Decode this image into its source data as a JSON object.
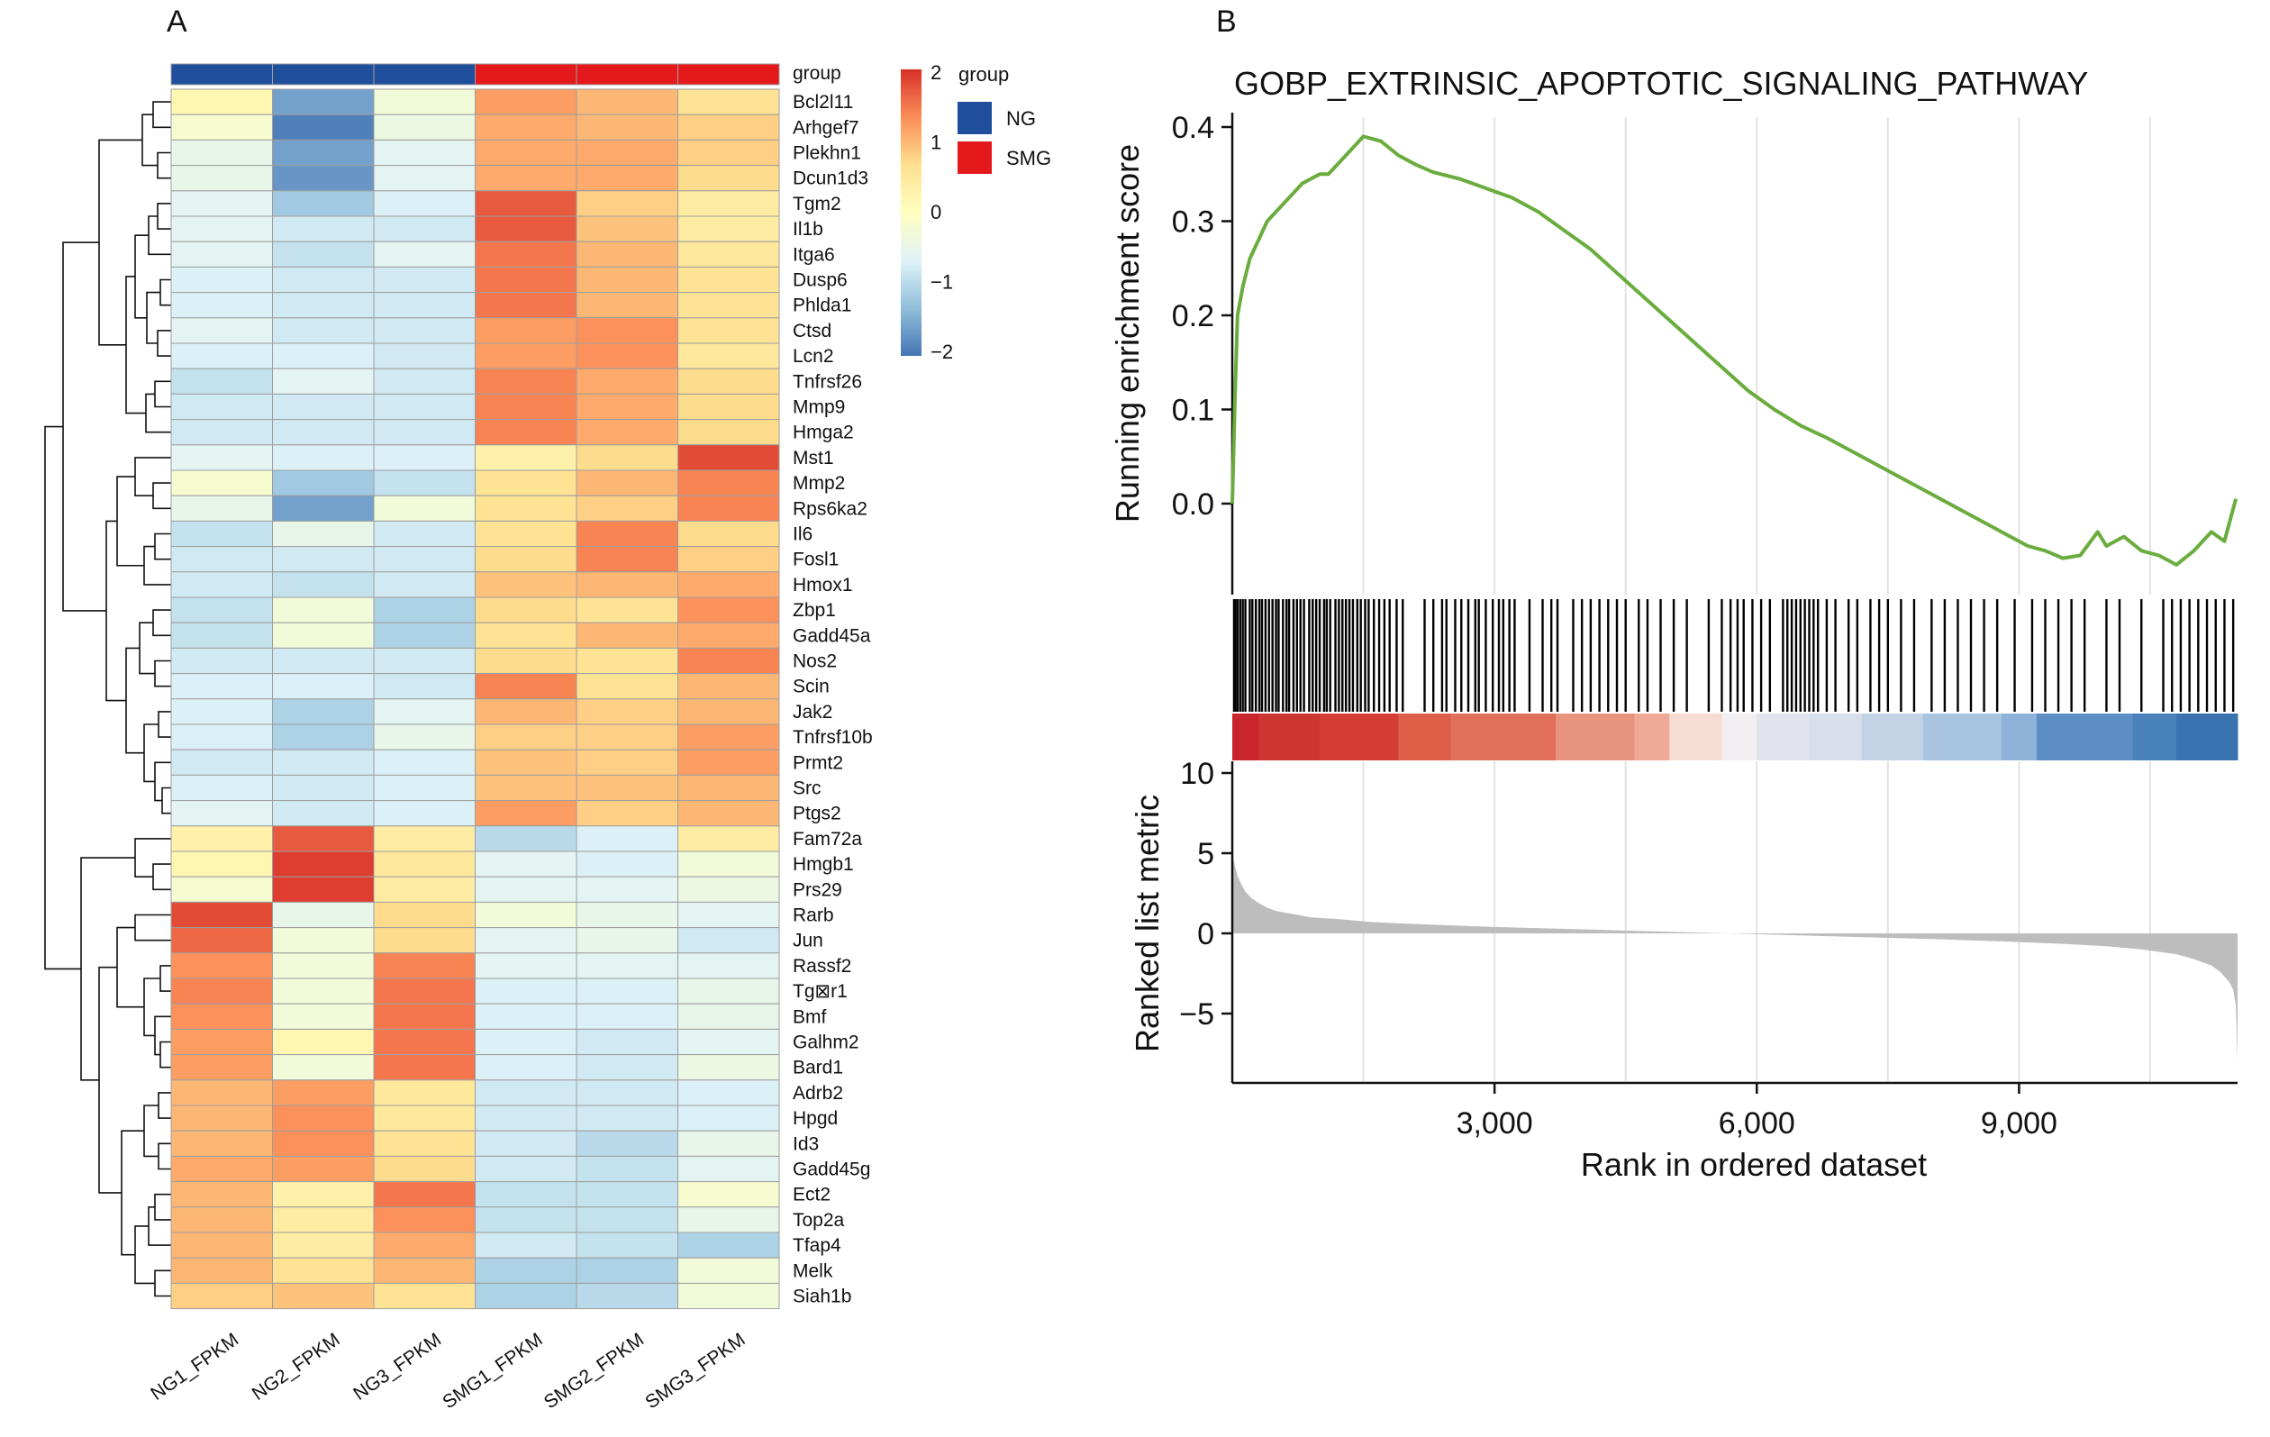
{
  "panels": {
    "a_label": "A",
    "b_label": "B"
  },
  "heatmap": {
    "annotation_label": "group",
    "group_colors": {
      "NG": "#1f4e9c",
      "SMG": "#e3191c"
    },
    "sample_groups": [
      "NG",
      "NG",
      "NG",
      "SMG",
      "SMG",
      "SMG"
    ],
    "samples": [
      "NG1_FPKM",
      "NG2_FPKM",
      "NG3_FPKM",
      "SMG1_FPKM",
      "SMG2_FPKM",
      "SMG3_FPKM"
    ],
    "genes": [
      "Bcl2l11",
      "Arhgef7",
      "Plekhn1",
      "Dcun1d3",
      "Tgm2",
      "Il1b",
      "Itga6",
      "Dusp6",
      "Phlda1",
      "Ctsd",
      "Lcn2",
      "Tnfrsf26",
      "Mmp9",
      "Hmga2",
      "Mst1",
      "Mmp2",
      "Rps6ka2",
      "Il6",
      "Fosl1",
      "Hmox1",
      "Zbp1",
      "Gadd45a",
      "Nos2",
      "Scin",
      "Jak2",
      "Tnfrsf10b",
      "Prmt2",
      "Src",
      "Ptgs2",
      "Fam72a",
      "Hmgb1",
      "Prs29",
      "Rarb",
      "Jun",
      "Rassf2",
      "Tg⊠r1",
      "Bmf",
      "Galhm2",
      "Bard1",
      "Adrb2",
      "Hpgd",
      "Id3",
      "Gadd45g",
      "Ect2",
      "Top2a",
      "Tfap4",
      "Melk",
      "Siah1b"
    ],
    "values": [
      [
        0.2,
        -1.6,
        -0.3,
        1.2,
        1.0,
        0.6
      ],
      [
        -0.2,
        -1.9,
        -0.4,
        1.1,
        1.0,
        0.8
      ],
      [
        -0.5,
        -1.6,
        -0.6,
        1.1,
        1.1,
        0.8
      ],
      [
        -0.5,
        -1.7,
        -0.6,
        1.1,
        1.1,
        0.7
      ],
      [
        -0.6,
        -1.2,
        -0.7,
        1.7,
        0.8,
        0.4
      ],
      [
        -0.6,
        -0.8,
        -0.8,
        1.7,
        0.9,
        0.4
      ],
      [
        -0.6,
        -0.9,
        -0.6,
        1.5,
        1.0,
        0.5
      ],
      [
        -0.7,
        -0.8,
        -0.8,
        1.5,
        1.0,
        0.6
      ],
      [
        -0.7,
        -0.8,
        -0.8,
        1.5,
        1.0,
        0.6
      ],
      [
        -0.6,
        -0.8,
        -0.8,
        1.2,
        1.3,
        0.6
      ],
      [
        -0.7,
        -0.7,
        -0.8,
        1.2,
        1.3,
        0.5
      ],
      [
        -0.9,
        -0.6,
        -0.8,
        1.4,
        1.1,
        0.7
      ],
      [
        -0.8,
        -0.8,
        -0.8,
        1.4,
        1.1,
        0.7
      ],
      [
        -0.8,
        -0.8,
        -0.8,
        1.4,
        1.1,
        0.7
      ],
      [
        -0.6,
        -0.7,
        -0.7,
        0.3,
        0.7,
        1.8
      ],
      [
        -0.2,
        -1.2,
        -0.9,
        0.6,
        1.0,
        1.4
      ],
      [
        -0.5,
        -1.6,
        -0.3,
        0.6,
        0.8,
        1.4
      ],
      [
        -0.9,
        -0.5,
        -0.8,
        0.6,
        1.4,
        0.7
      ],
      [
        -0.8,
        -0.8,
        -0.8,
        0.7,
        1.4,
        0.8
      ],
      [
        -0.8,
        -0.9,
        -0.8,
        0.9,
        1.0,
        1.1
      ],
      [
        -0.9,
        -0.3,
        -1.1,
        0.7,
        0.6,
        1.3
      ],
      [
        -0.9,
        -0.3,
        -1.1,
        0.6,
        1.0,
        1.1
      ],
      [
        -0.8,
        -0.8,
        -0.8,
        0.7,
        0.6,
        1.4
      ],
      [
        -0.7,
        -0.7,
        -0.8,
        1.4,
        0.6,
        1.0
      ],
      [
        -0.7,
        -1.1,
        -0.6,
        1.0,
        0.8,
        1.0
      ],
      [
        -0.7,
        -1.1,
        -0.5,
        0.8,
        0.8,
        1.2
      ],
      [
        -0.8,
        -0.8,
        -0.7,
        0.9,
        0.8,
        1.2
      ],
      [
        -0.7,
        -0.8,
        -0.7,
        0.9,
        0.9,
        1.0
      ],
      [
        -0.6,
        -0.8,
        -0.7,
        1.2,
        0.8,
        1.0
      ],
      [
        0.3,
        1.7,
        0.4,
        -1.0,
        -0.7,
        0.4
      ],
      [
        0.2,
        1.9,
        0.5,
        -0.6,
        -0.7,
        -0.3
      ],
      [
        -0.2,
        1.9,
        0.4,
        -0.6,
        -0.6,
        -0.4
      ],
      [
        1.8,
        -0.5,
        0.7,
        -0.3,
        -0.5,
        -0.6
      ],
      [
        1.6,
        -0.3,
        0.7,
        -0.6,
        -0.5,
        -0.8
      ],
      [
        1.3,
        -0.3,
        1.4,
        -0.6,
        -0.6,
        -0.6
      ],
      [
        1.4,
        -0.3,
        1.5,
        -0.7,
        -0.7,
        -0.5
      ],
      [
        1.3,
        -0.3,
        1.5,
        -0.7,
        -0.7,
        -0.5
      ],
      [
        1.2,
        0.2,
        1.5,
        -0.7,
        -0.8,
        -0.6
      ],
      [
        1.2,
        -0.3,
        1.5,
        -0.7,
        -0.8,
        -0.4
      ],
      [
        1.0,
        1.2,
        0.5,
        -0.8,
        -0.8,
        -0.7
      ],
      [
        1.0,
        1.3,
        0.5,
        -0.8,
        -0.8,
        -0.7
      ],
      [
        1.0,
        1.3,
        0.6,
        -0.8,
        -1.0,
        -0.5
      ],
      [
        1.1,
        1.2,
        0.7,
        -0.8,
        -0.9,
        -0.6
      ],
      [
        1.0,
        0.3,
        1.5,
        -0.9,
        -0.9,
        -0.2
      ],
      [
        1.0,
        0.4,
        1.3,
        -0.9,
        -0.9,
        -0.5
      ],
      [
        1.0,
        0.4,
        1.1,
        -0.8,
        -0.9,
        -1.1
      ],
      [
        1.0,
        0.6,
        1.0,
        -1.1,
        -1.1,
        -0.3
      ],
      [
        0.8,
        0.9,
        0.6,
        -1.1,
        -1.0,
        -0.3
      ]
    ],
    "color_scale": {
      "min": -2,
      "max": 2,
      "ticks": [
        "2",
        "1",
        "0",
        "−1",
        "−2"
      ],
      "stops": [
        "#4575b4",
        "#91bfdb",
        "#e0f3f8",
        "#ffffbf",
        "#fee090",
        "#fc8d59",
        "#d73027"
      ]
    },
    "legend": {
      "title": "group",
      "entries": [
        "NG",
        "SMG"
      ]
    }
  },
  "chart_data": {
    "type": "line",
    "title": "GOBP_EXTRINSIC_APOPTOTIC_SIGNALING_PATHWAY",
    "line_color": "#6bac3f",
    "es_ylabel": "Running enrichment score",
    "es_yticks": [
      "0.4",
      "0.3",
      "0.2",
      "0.1",
      "0.0"
    ],
    "es_ylim": [
      -0.07,
      0.41
    ],
    "rank_ylabel": "Ranked list metric",
    "rank_yticks": [
      "10",
      "5",
      "0",
      "−5"
    ],
    "rank_ylim": [
      -8.5,
      10.5
    ],
    "xlabel": "Rank in ordered dataset",
    "xtick_values": [
      3000,
      6000,
      9000
    ],
    "xtick_labels": [
      "3,000",
      "6,000",
      "9,000"
    ],
    "xlim": [
      0,
      11500
    ],
    "vertical_gridlines": [
      1500,
      3000,
      4500,
      6000,
      7500,
      9000,
      10500
    ],
    "running_es": {
      "x": [
        0,
        30,
        60,
        120,
        200,
        300,
        400,
        500,
        600,
        700,
        800,
        900,
        1000,
        1100,
        1200,
        1300,
        1400,
        1500,
        1700,
        1900,
        2100,
        2300,
        2600,
        2900,
        3200,
        3500,
        3800,
        4100,
        4400,
        4700,
        5000,
        5300,
        5600,
        5900,
        6200,
        6500,
        6800,
        7100,
        7400,
        7700,
        8000,
        8300,
        8600,
        8900,
        9100,
        9300,
        9500,
        9700,
        9900,
        10000,
        10200,
        10400,
        10600,
        10800,
        11000,
        11200,
        11350,
        11480
      ],
      "y": [
        0.0,
        0.11,
        0.2,
        0.23,
        0.26,
        0.28,
        0.3,
        0.31,
        0.32,
        0.33,
        0.34,
        0.345,
        0.35,
        0.35,
        0.36,
        0.37,
        0.38,
        0.39,
        0.385,
        0.37,
        0.36,
        0.352,
        0.345,
        0.335,
        0.325,
        0.31,
        0.29,
        0.27,
        0.245,
        0.22,
        0.195,
        0.17,
        0.145,
        0.12,
        0.1,
        0.083,
        0.07,
        0.055,
        0.04,
        0.025,
        0.01,
        -0.005,
        -0.02,
        -0.035,
        -0.045,
        -0.05,
        -0.058,
        -0.055,
        -0.03,
        -0.045,
        -0.035,
        -0.05,
        -0.055,
        -0.065,
        -0.05,
        -0.03,
        -0.04,
        0.005
      ]
    },
    "hit_ranks": [
      20,
      35,
      60,
      90,
      120,
      150,
      200,
      230,
      270,
      310,
      340,
      380,
      420,
      460,
      500,
      530,
      580,
      620,
      650,
      700,
      740,
      780,
      820,
      880,
      920,
      960,
      1000,
      1050,
      1080,
      1120,
      1180,
      1220,
      1260,
      1300,
      1340,
      1380,
      1430,
      1470,
      1520,
      1560,
      1620,
      1680,
      1740,
      1800,
      1880,
      1950,
      2200,
      2300,
      2400,
      2450,
      2550,
      2620,
      2700,
      2780,
      2820,
      2900,
      2980,
      3050,
      3100,
      3170,
      3230,
      3400,
      3550,
      3650,
      3720,
      3900,
      4000,
      4100,
      4200,
      4300,
      4400,
      4500,
      4650,
      4750,
      4900,
      5050,
      5200,
      5450,
      5600,
      5700,
      5780,
      5850,
      5950,
      6050,
      6150,
      6300,
      6350,
      6400,
      6450,
      6500,
      6550,
      6600,
      6650,
      6700,
      6800,
      6900,
      7050,
      7150,
      7300,
      7400,
      7500,
      7650,
      7800,
      8000,
      8150,
      8300,
      8450,
      8600,
      8750,
      8950,
      9150,
      9300,
      9450,
      9600,
      9750,
      10000,
      10150,
      10400,
      10650,
      10750,
      10850,
      10950,
      11050,
      11150,
      11250,
      11350,
      11450
    ],
    "ranking_bands": {
      "x_start": [
        0,
        300,
        1000,
        1900,
        2500,
        3700,
        4600,
        5000,
        5600,
        6000,
        6600,
        7200,
        7900,
        8800,
        9200,
        10300,
        10800
      ],
      "x_end": [
        300,
        1000,
        1900,
        2500,
        3700,
        4600,
        5000,
        5600,
        6000,
        6600,
        7200,
        7900,
        8800,
        9200,
        10300,
        10800,
        11500
      ],
      "colors": [
        "#c9252c",
        "#cd3530",
        "#d43e35",
        "#de5e48",
        "#e0705a",
        "#e8937d",
        "#eeaa97",
        "#f6dcd3",
        "#f2eef2",
        "#e2e4ec",
        "#d9dfea",
        "#c3d3e6",
        "#a9c4df",
        "#8fb2d8",
        "#5d8fc4",
        "#4a82bc",
        "#3a73b0"
      ]
    },
    "ranked_metric": {
      "x": [
        0,
        30,
        60,
        100,
        150,
        220,
        300,
        400,
        500,
        700,
        900,
        1200,
        1600,
        2000,
        3000,
        4000,
        5000,
        6000,
        7000,
        8000,
        8800,
        9500,
        10000,
        10400,
        10800,
        11000,
        11200,
        11300,
        11400,
        11450,
        11480,
        11500
      ],
      "y": [
        5.0,
        4.2,
        3.6,
        3.1,
        2.6,
        2.2,
        1.9,
        1.6,
        1.4,
        1.2,
        1.0,
        0.9,
        0.7,
        0.6,
        0.4,
        0.25,
        0.1,
        -0.05,
        -0.2,
        -0.35,
        -0.5,
        -0.65,
        -0.8,
        -1.0,
        -1.3,
        -1.6,
        -2.0,
        -2.4,
        -3.0,
        -3.5,
        -4.5,
        -8.0
      ]
    },
    "metric_fill_color": "#bdbdbd"
  }
}
